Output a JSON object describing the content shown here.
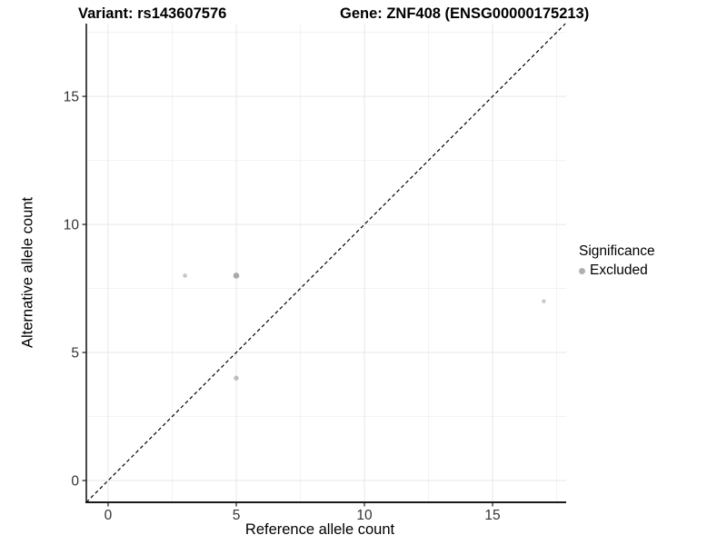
{
  "titles": {
    "variant": "Variant: rs143607576",
    "gene": "Gene: ZNF408 (ENSG00000175213)"
  },
  "legend": {
    "title": "Significance",
    "items": [
      {
        "label": "Excluded",
        "color": "#b0b0b0"
      }
    ]
  },
  "colors": {
    "background": "#ffffff",
    "grid_major": "#e7e7e7",
    "grid_minor": "#f3f3f3",
    "axis_line": "#1a1a1a",
    "tick_label": "#333333",
    "identity_line": "#000000"
  },
  "chart_data": {
    "type": "scatter",
    "title": "Variant: rs143607576 | Gene: ZNF408 (ENSG00000175213)",
    "xlabel": "Reference allele count",
    "ylabel": "Alternative allele count",
    "xlim": [
      -0.85,
      17.87
    ],
    "ylim": [
      -0.85,
      17.84
    ],
    "x_ticks": [
      0,
      5,
      10,
      15
    ],
    "y_ticks": [
      0,
      5,
      10,
      15
    ],
    "x_minor_ticks": [
      2.5,
      7.5,
      12.5,
      17.5
    ],
    "y_minor_ticks": [
      2.5,
      7.5,
      12.5,
      17.5
    ],
    "grid": true,
    "legend_position": "right",
    "series": [
      {
        "name": "Excluded",
        "points": [
          {
            "x": 3,
            "y": 8,
            "r": 2.3,
            "color": "#c6c6c6"
          },
          {
            "x": 5,
            "y": 8,
            "r": 3.3,
            "color": "#a9a9a9"
          },
          {
            "x": 5,
            "y": 4,
            "r": 2.7,
            "color": "#bdbdbd"
          },
          {
            "x": 17,
            "y": 7,
            "r": 2.2,
            "color": "#c9c9c9"
          }
        ]
      }
    ],
    "identity_line": {
      "from": -0.85,
      "to": 17.84,
      "style": "dashed",
      "color": "#000000"
    }
  }
}
